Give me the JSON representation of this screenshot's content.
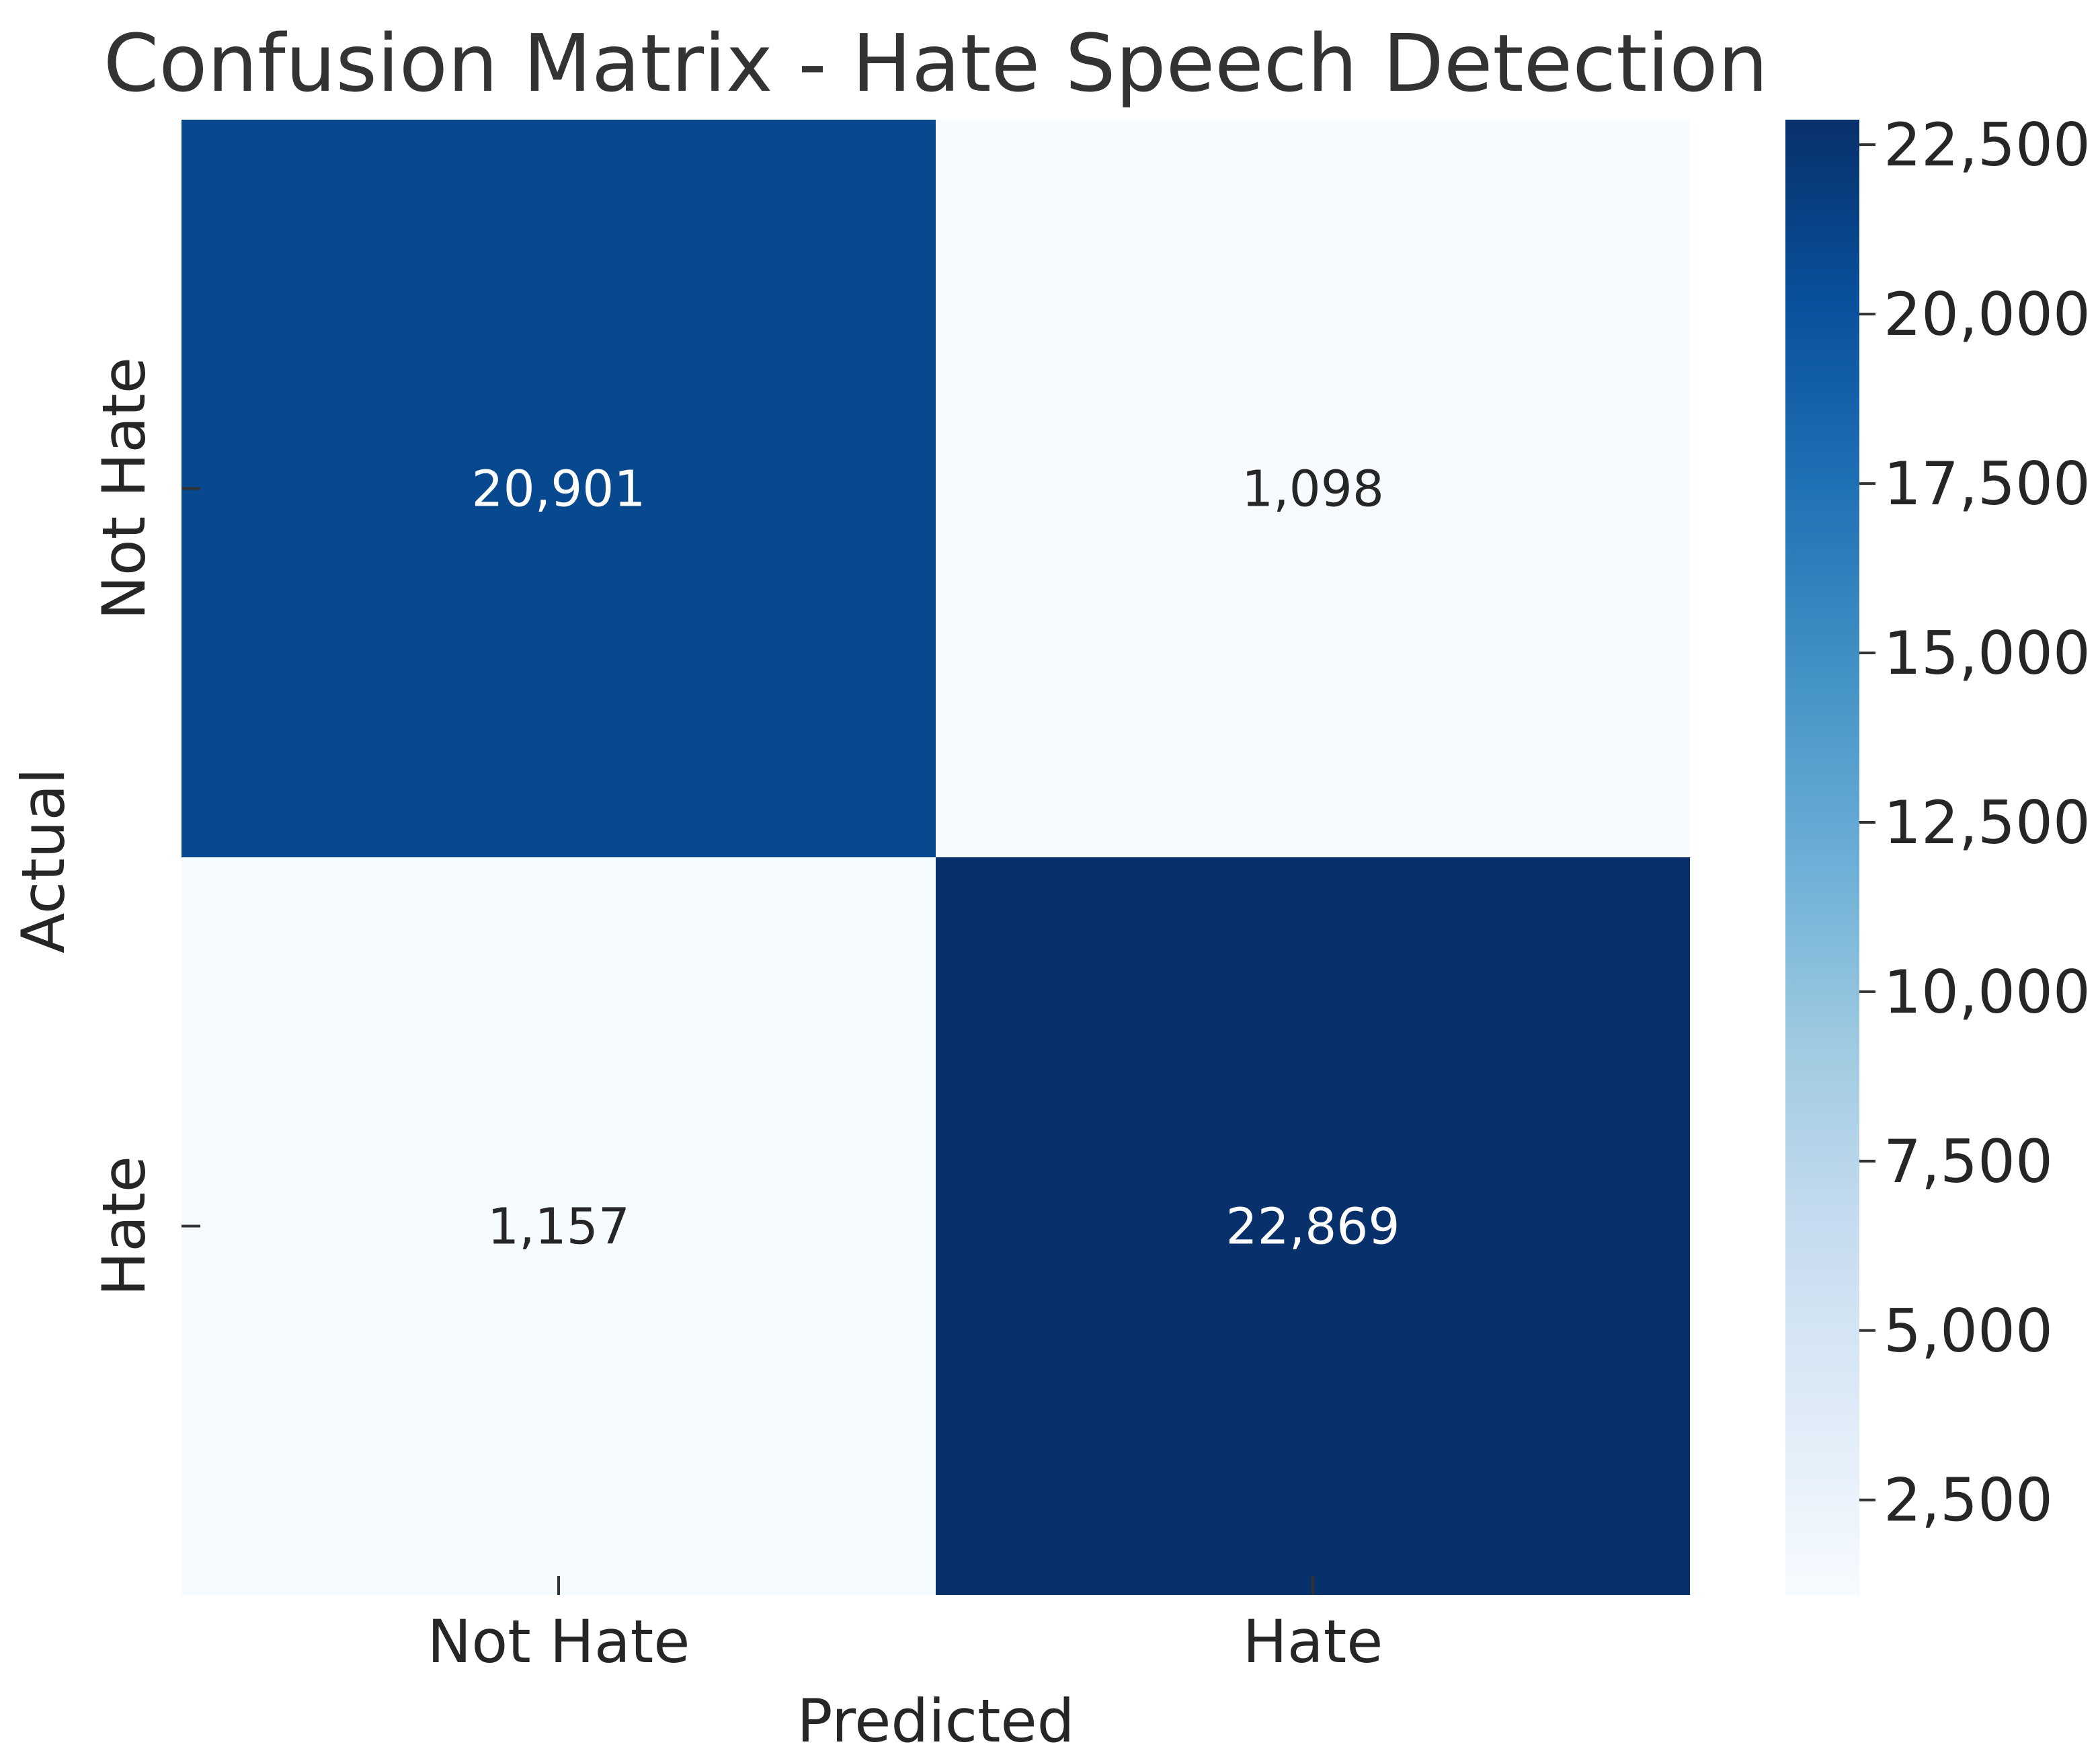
{
  "chart_data": {
    "type": "heatmap",
    "title": "Confusion Matrix - Hate Speech Detection",
    "xlabel": "Predicted",
    "ylabel": "Actual",
    "x_categories": [
      "Not Hate",
      "Hate"
    ],
    "y_categories": [
      "Not Hate",
      "Hate"
    ],
    "values": [
      [
        20901,
        1098
      ],
      [
        1157,
        22869
      ]
    ],
    "annotations": [
      [
        "20,901",
        "1,098"
      ],
      [
        "1,157",
        "22,869"
      ]
    ],
    "colormap": "Blues",
    "colorbar": {
      "range": [
        1098,
        22869
      ],
      "ticks": [
        2500,
        5000,
        7500,
        10000,
        12500,
        15000,
        17500,
        20000,
        22500
      ],
      "tick_labels": [
        "2,500",
        "5,000",
        "7,500",
        "10,000",
        "12,500",
        "15,000",
        "17,500",
        "20,000",
        "22,500"
      ]
    },
    "grid": false
  }
}
